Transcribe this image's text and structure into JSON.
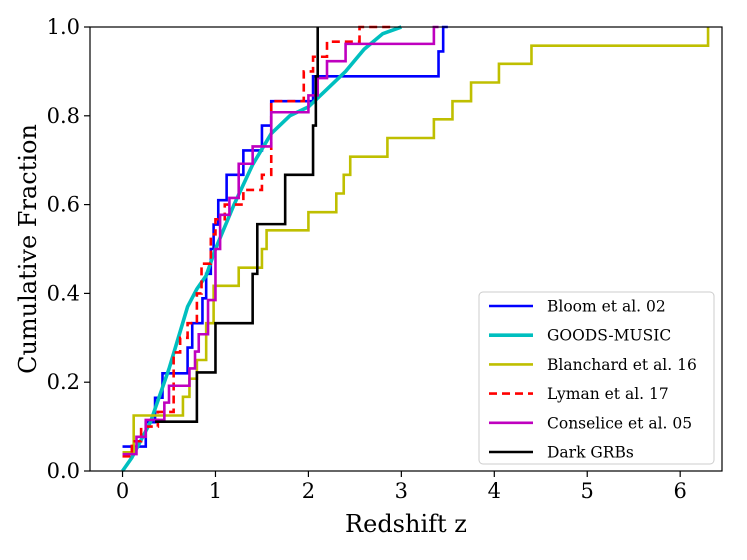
{
  "chart_data": {
    "type": "line",
    "title": "",
    "xlabel": "Redshift z",
    "ylabel": "Cumulative Fraction",
    "xlim": [
      -0.35,
      6.45
    ],
    "ylim": [
      0,
      1
    ],
    "xticks": [
      "0",
      "1",
      "2",
      "3",
      "4",
      "5",
      "6"
    ],
    "yticks": [
      "0.0",
      "0.2",
      "0.4",
      "0.6",
      "0.8",
      "1.0"
    ],
    "grid": false,
    "legend_position": "lower-right",
    "series": [
      {
        "name": "Bloom et al. 02",
        "color": "#0000ff",
        "style": "solid",
        "kind": "step",
        "x": [
          0.0,
          0.1,
          0.25,
          0.35,
          0.43,
          0.7,
          0.75,
          0.86,
          0.9,
          0.95,
          0.98,
          1.03,
          1.12,
          1.3,
          1.5,
          1.6,
          2.05,
          2.2,
          3.4,
          3.45,
          3.5
        ],
        "y": [
          0.055,
          0.055,
          0.11,
          0.165,
          0.22,
          0.278,
          0.333,
          0.389,
          0.444,
          0.5,
          0.555,
          0.61,
          0.667,
          0.722,
          0.778,
          0.833,
          0.889,
          0.889,
          0.945,
          1.0,
          1.0
        ]
      },
      {
        "name": "GOODS-MUSIC",
        "color": "#00bfbf",
        "style": "solid",
        "kind": "curve",
        "x": [
          0.0,
          0.1,
          0.2,
          0.3,
          0.4,
          0.5,
          0.6,
          0.7,
          0.8,
          0.9,
          1.0,
          1.2,
          1.4,
          1.6,
          1.8,
          2.0,
          2.2,
          2.4,
          2.6,
          2.8,
          3.0
        ],
        "y": [
          0.0,
          0.03,
          0.07,
          0.11,
          0.17,
          0.23,
          0.3,
          0.37,
          0.41,
          0.44,
          0.5,
          0.6,
          0.69,
          0.76,
          0.8,
          0.82,
          0.86,
          0.9,
          0.95,
          0.985,
          1.0
        ]
      },
      {
        "name": "Blanchard et al. 16",
        "color": "#bfbf00",
        "style": "solid",
        "kind": "step",
        "x": [
          0.0,
          0.12,
          0.55,
          0.65,
          0.72,
          0.8,
          0.9,
          0.98,
          1.25,
          1.5,
          1.55,
          2.0,
          2.3,
          2.38,
          2.45,
          2.6,
          2.85,
          3.35,
          3.55,
          3.75,
          4.05,
          4.4,
          6.3
        ],
        "y": [
          0.042,
          0.125,
          0.125,
          0.167,
          0.208,
          0.25,
          0.333,
          0.417,
          0.458,
          0.5,
          0.542,
          0.583,
          0.625,
          0.667,
          0.708,
          0.708,
          0.75,
          0.792,
          0.833,
          0.875,
          0.917,
          0.958,
          1.0
        ]
      },
      {
        "name": "Lyman et al. 17",
        "color": "#ff0000",
        "style": "dashed",
        "kind": "step",
        "x": [
          0.0,
          0.1,
          0.2,
          0.38,
          0.55,
          0.62,
          0.7,
          0.8,
          0.85,
          0.95,
          1.0,
          1.1,
          1.3,
          1.5,
          1.6,
          1.95,
          2.05,
          2.2,
          2.55,
          2.9
        ],
        "y": [
          0.033,
          0.067,
          0.1,
          0.133,
          0.267,
          0.3,
          0.333,
          0.4,
          0.467,
          0.533,
          0.567,
          0.6,
          0.633,
          0.667,
          0.833,
          0.9,
          0.933,
          0.967,
          1.0,
          1.0
        ]
      },
      {
        "name": "Conselice et al. 05",
        "color": "#bf00bf",
        "style": "solid",
        "kind": "step",
        "x": [
          0.0,
          0.15,
          0.25,
          0.45,
          0.5,
          0.72,
          0.78,
          0.82,
          0.92,
          1.0,
          1.05,
          1.15,
          1.25,
          1.4,
          1.6,
          1.75,
          2.0,
          2.1,
          2.2,
          2.4,
          3.35,
          3.4
        ],
        "y": [
          0.038,
          0.077,
          0.115,
          0.154,
          0.192,
          0.231,
          0.269,
          0.308,
          0.385,
          0.5,
          0.577,
          0.615,
          0.692,
          0.731,
          0.808,
          0.808,
          0.846,
          0.885,
          0.923,
          0.962,
          1.0,
          1.0
        ]
      },
      {
        "name": "Dark GRBs",
        "color": "#000000",
        "style": "solid",
        "kind": "step",
        "x": [
          0.35,
          0.8,
          0.85,
          1.0,
          1.4,
          1.45,
          1.5,
          1.75,
          2.05,
          2.08,
          2.1
        ],
        "y": [
          0.111,
          0.222,
          0.222,
          0.333,
          0.444,
          0.556,
          0.556,
          0.667,
          0.778,
          0.889,
          1.0
        ]
      }
    ]
  }
}
